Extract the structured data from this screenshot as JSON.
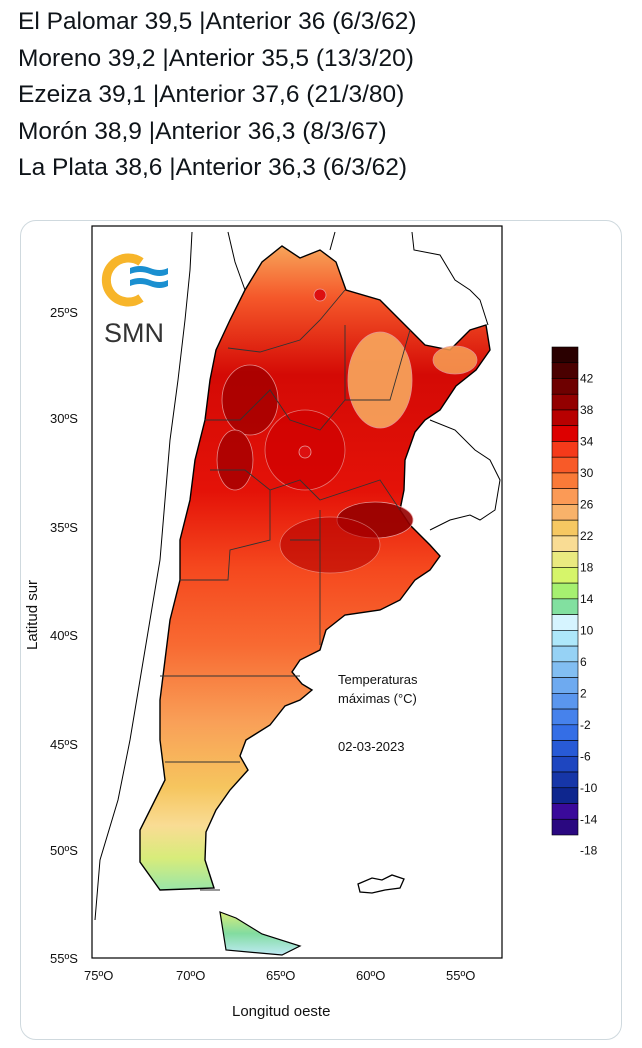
{
  "tweet": {
    "lines": [
      "El Palomar 39,5 |Anterior 36 (6/3/62)",
      "Moreno 39,2 |Anterior 35,5 (13/3/20)",
      "Ezeiza 39,1 |Anterior 37,6 (21/3/80)",
      "Morón 38,9 |Anterior 36,3 (8/3/67)",
      "La Plata 38,6 |Anterior 36,3 (6/3/62)"
    ]
  },
  "map": {
    "logo_text": "SMN",
    "title_line1": "Temperaturas",
    "title_line2": "máximas (°C)",
    "date": "02-03-2023",
    "ylabel": "Latitud sur",
    "xlabel": "Longitud oeste",
    "lat_ticks": [
      "25ºS",
      "30ºS",
      "35ºS",
      "40ºS",
      "45ºS",
      "50ºS",
      "55ºS"
    ],
    "lon_ticks": [
      "75ºO",
      "70ºO",
      "65ºO",
      "60ºO",
      "55ºO"
    ],
    "legend_labels": [
      "42",
      "38",
      "34",
      "30",
      "26",
      "22",
      "18",
      "14",
      "10",
      "6",
      "2",
      "-2",
      "-6",
      "-10",
      "-14",
      "-18"
    ],
    "legend_colors": [
      "#2a0000",
      "#4a0000",
      "#6e0000",
      "#930000",
      "#b80000",
      "#dd0000",
      "#f53a1a",
      "#f85a28",
      "#fa7a38",
      "#fb9a56",
      "#f8b26a",
      "#f6c862",
      "#f9dc94",
      "#eaea80",
      "#d6f56a",
      "#a6f070",
      "#82e0a0",
      "#d6f4ff",
      "#aee8fb",
      "#96d2f5",
      "#82bef2",
      "#6eaaf0",
      "#5a96ee",
      "#4682ec",
      "#346ee6",
      "#285ad6",
      "#1e46c0",
      "#1636a8",
      "#0e268e",
      "#3a0a9a",
      "#2a0880"
    ]
  }
}
